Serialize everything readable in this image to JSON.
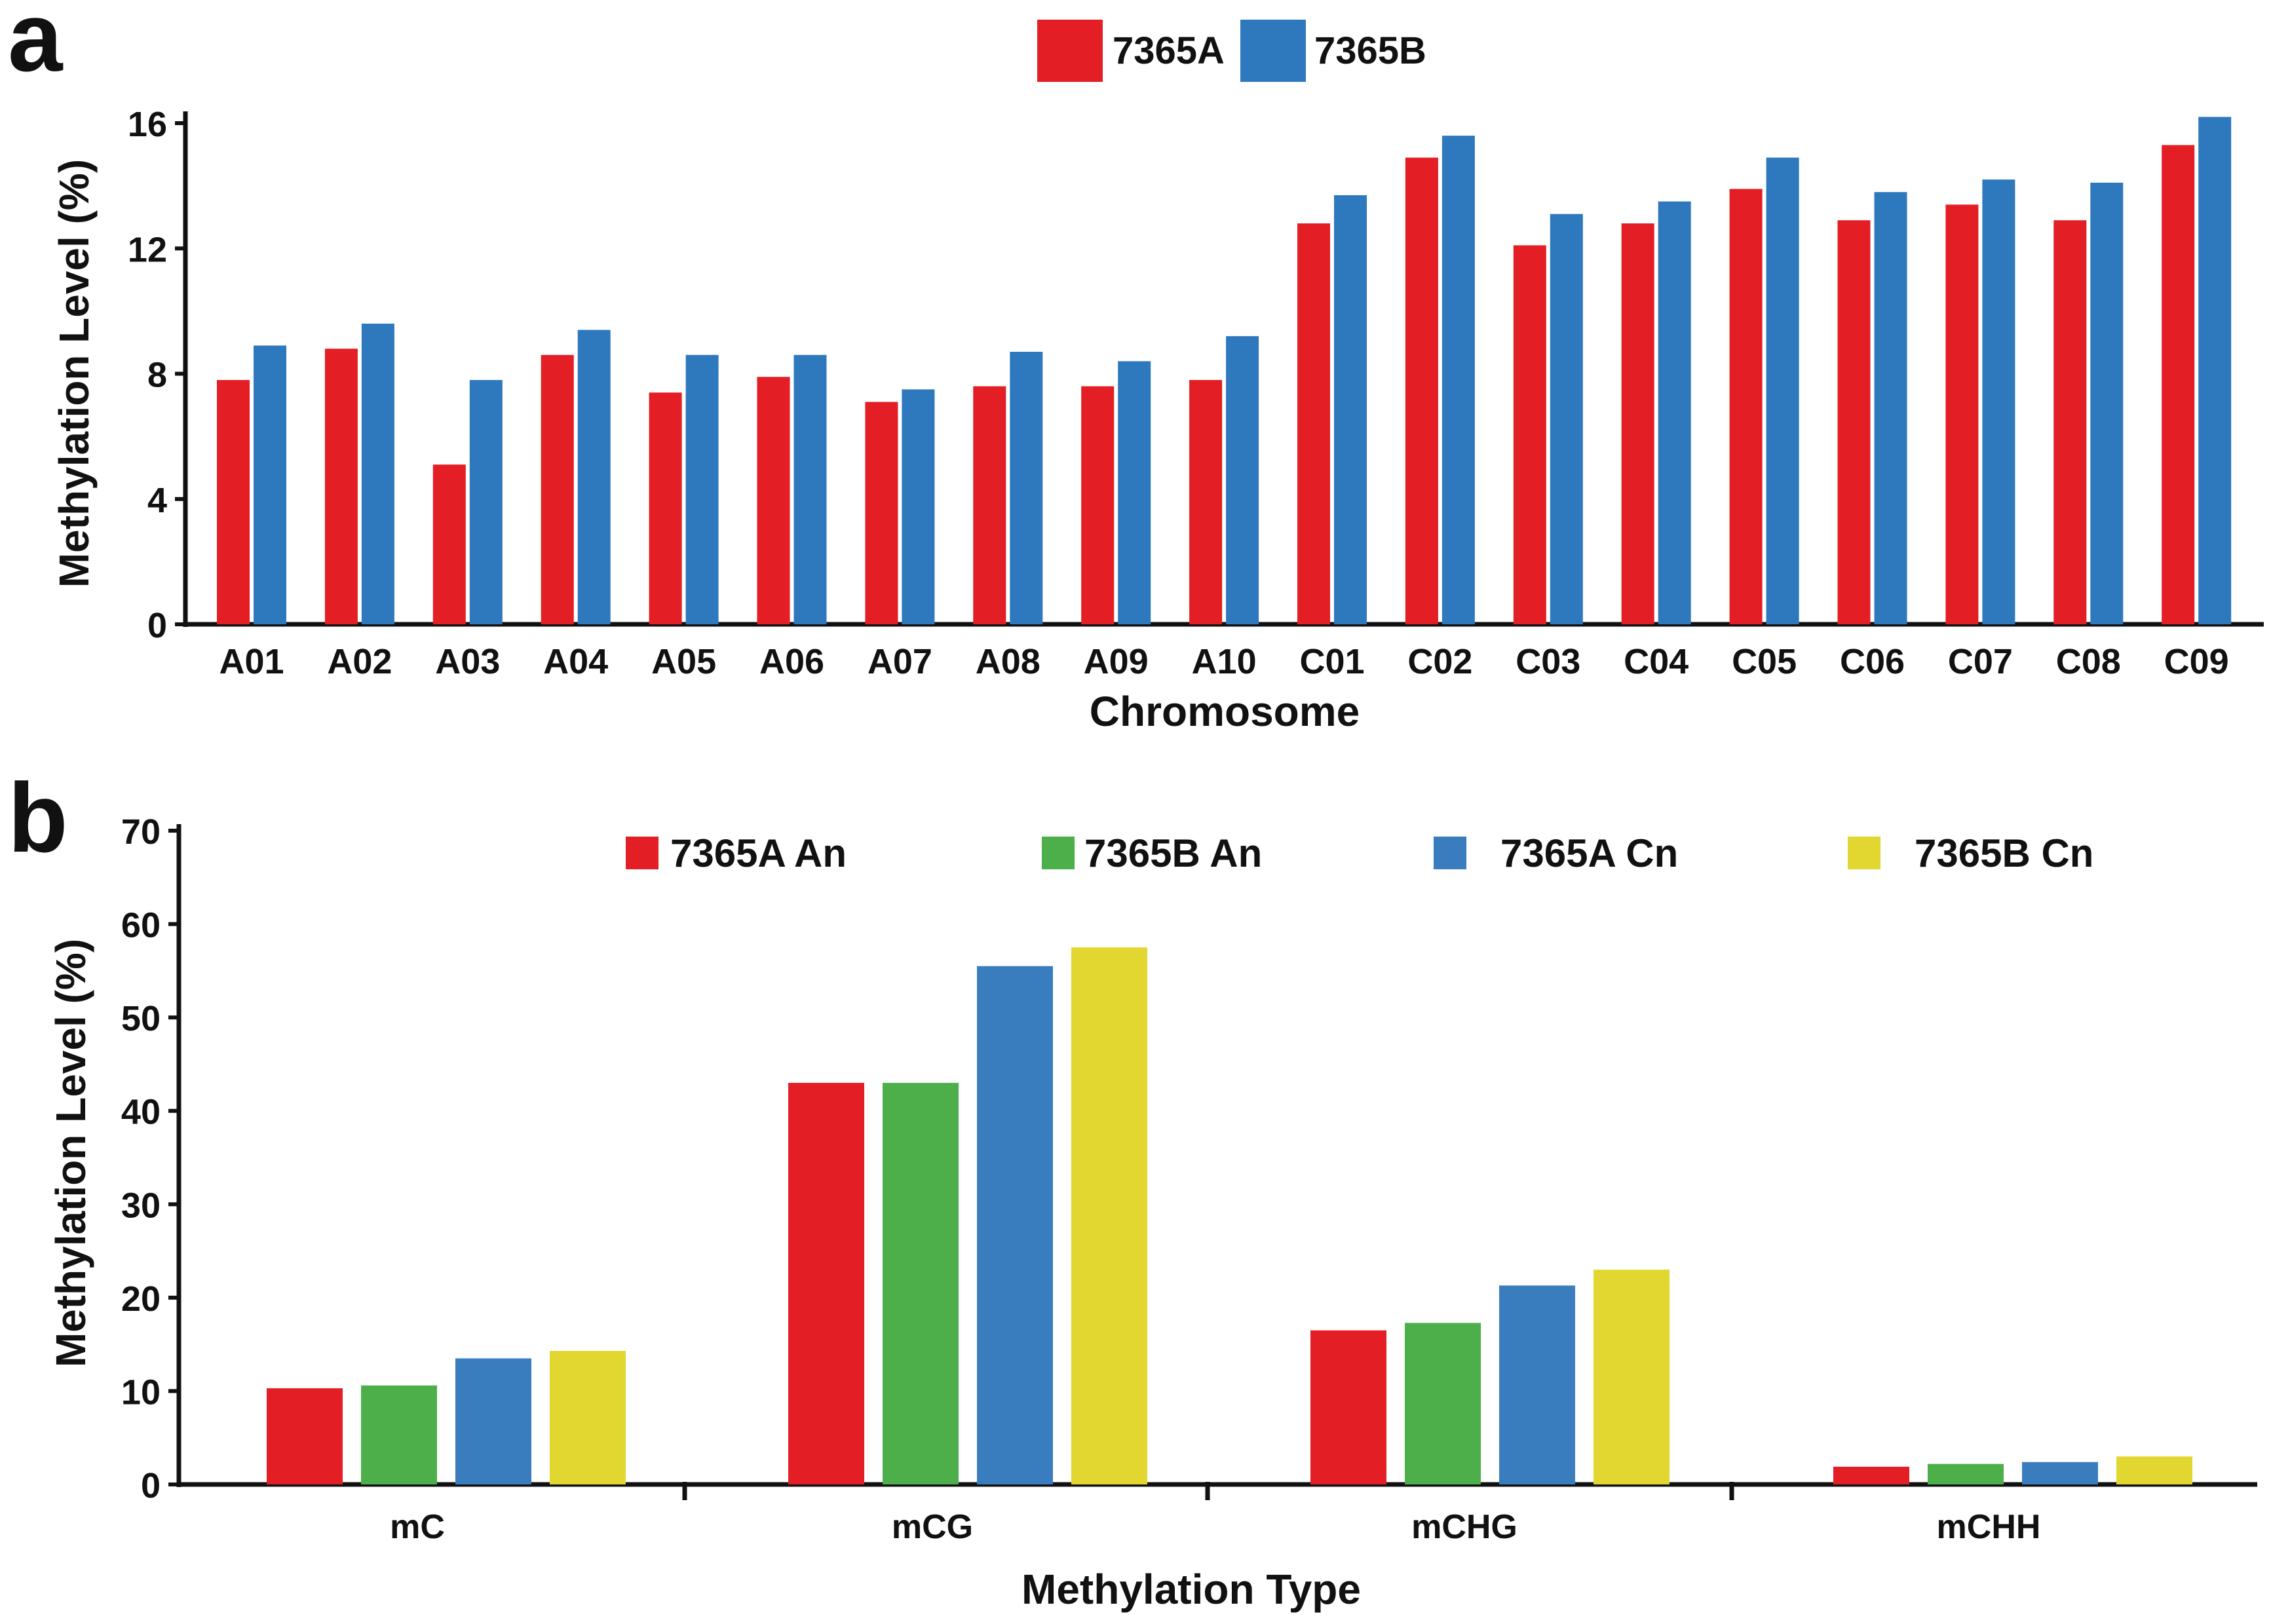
{
  "panels": {
    "a": {
      "letter": "a"
    },
    "b": {
      "letter": "b"
    }
  },
  "chart_data": [
    {
      "id": "a",
      "type": "bar",
      "title": "",
      "xlabel": "Chromosome",
      "ylabel": "Methylation Level  (%)",
      "ylim": [
        0,
        16
      ],
      "yticks": [
        0,
        4,
        8,
        12,
        16
      ],
      "grid": false,
      "legend_position": "top-center",
      "categories": [
        "A01",
        "A02",
        "A03",
        "A04",
        "A05",
        "A06",
        "A07",
        "A08",
        "A09",
        "A10",
        "C01",
        "C02",
        "C03",
        "C04",
        "C05",
        "C06",
        "C07",
        "C08",
        "C09"
      ],
      "series": [
        {
          "name": "7365A",
          "color": "#E31E24",
          "values": [
            7.8,
            8.8,
            5.1,
            8.6,
            7.4,
            7.9,
            7.1,
            7.6,
            7.6,
            7.8,
            12.8,
            14.9,
            12.1,
            12.8,
            13.9,
            12.9,
            13.4,
            12.9,
            15.3
          ]
        },
        {
          "name": "7365B",
          "color": "#2E78BD",
          "values": [
            8.9,
            9.6,
            7.8,
            9.4,
            8.6,
            8.6,
            7.5,
            8.7,
            8.4,
            9.2,
            13.7,
            15.6,
            13.1,
            13.5,
            14.9,
            13.8,
            14.2,
            14.1,
            16.2
          ]
        }
      ]
    },
    {
      "id": "b",
      "type": "bar",
      "title": "",
      "xlabel": "Methylation Type",
      "ylabel": "Methylation Level  (%)",
      "ylim": [
        0,
        70
      ],
      "yticks": [
        0,
        10,
        20,
        30,
        40,
        50,
        60,
        70
      ],
      "grid": false,
      "legend_position": "top",
      "categories": [
        "mC",
        "mCG",
        "mCHG",
        "mCHH"
      ],
      "series": [
        {
          "name": "7365A An",
          "color": "#E31E24",
          "values": [
            10.3,
            43.0,
            16.5,
            1.9
          ]
        },
        {
          "name": "7365B An",
          "color": "#4DAF4A",
          "values": [
            10.6,
            43.0,
            17.3,
            2.2
          ]
        },
        {
          "name": "7365A Cn",
          "color": "#3A7DBF",
          "values": [
            13.5,
            55.5,
            21.3,
            2.4
          ]
        },
        {
          "name": "7365B Cn",
          "color": "#E2D630",
          "values": [
            14.3,
            57.5,
            23.0,
            3.0
          ]
        }
      ]
    }
  ]
}
